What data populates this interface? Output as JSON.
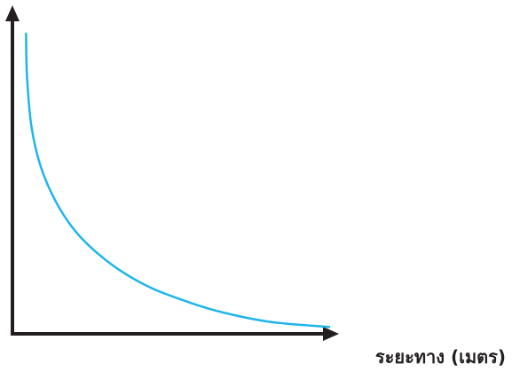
{
  "chart_data": {
    "type": "line",
    "title": "",
    "xlabel": "ระยะทาง (เมตร)",
    "ylabel": "",
    "grid": false,
    "legend": "none",
    "xlim": [
      0,
      1
    ],
    "ylim": [
      0,
      1
    ],
    "series": [
      {
        "color": "#1fb5e9",
        "x": [
          0.043,
          0.046,
          0.06,
          0.09,
          0.14,
          0.2,
          0.27,
          0.35,
          0.44,
          0.53,
          0.62,
          0.72,
          0.8,
          0.86,
          0.93,
          1.0
        ],
        "y": [
          0.955,
          0.82,
          0.66,
          0.53,
          0.415,
          0.325,
          0.255,
          0.195,
          0.145,
          0.11,
          0.08,
          0.055,
          0.04,
          0.033,
          0.027,
          0.022
        ]
      }
    ]
  },
  "colors": {
    "axis": "#231f20",
    "curve": "#1fb5e9",
    "background": "#ffffff"
  }
}
